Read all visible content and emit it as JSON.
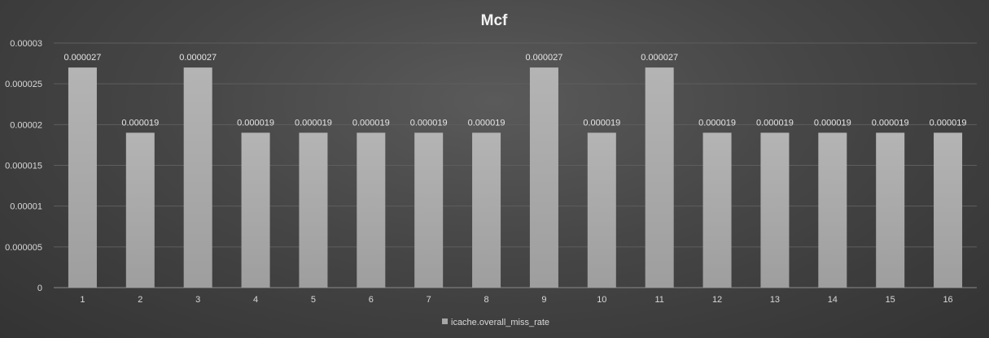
{
  "chart_data": {
    "type": "bar",
    "title": "Mcf",
    "xlabel": "",
    "ylabel": "",
    "categories": [
      "1",
      "2",
      "3",
      "4",
      "5",
      "6",
      "7",
      "8",
      "9",
      "10",
      "11",
      "12",
      "13",
      "14",
      "15",
      "16"
    ],
    "series": [
      {
        "name": "icache.overall_miss_rate",
        "values": [
          2.7e-05,
          1.9e-05,
          2.7e-05,
          1.9e-05,
          1.9e-05,
          1.9e-05,
          1.9e-05,
          1.9e-05,
          2.7e-05,
          1.9e-05,
          2.7e-05,
          1.9e-05,
          1.9e-05,
          1.9e-05,
          1.9e-05,
          1.9e-05
        ],
        "data_labels": [
          "0.000027",
          "0.000019",
          "0.000027",
          "0.000019",
          "0.000019",
          "0.000019",
          "0.000019",
          "0.000019",
          "0.000027",
          "0.000019",
          "0.000027",
          "0.000019",
          "0.000019",
          "0.000019",
          "0.000019",
          "0.000019"
        ],
        "color": "#a6a6a6"
      }
    ],
    "ylim": [
      0,
      3e-05
    ],
    "y_ticks": [
      0,
      5e-06,
      1e-05,
      1.5e-05,
      2e-05,
      2.5e-05,
      3e-05
    ],
    "y_tick_labels": [
      "0",
      "0.000005",
      "0.00001",
      "0.000015",
      "0.00002",
      "0.000025",
      "0.00003"
    ],
    "grid": true,
    "legend_position": "bottom",
    "colors": {
      "bar": "#a6a6a6",
      "bar_highlight": "#b8b8b8",
      "grid": "#5e5e5e",
      "text": "#d9d9d9"
    }
  }
}
